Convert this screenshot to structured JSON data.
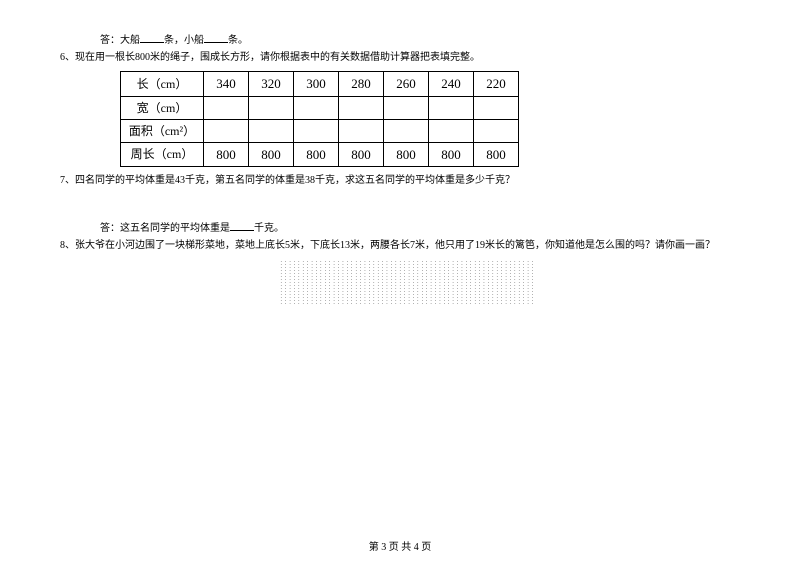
{
  "q5": {
    "answer_prefix": "答：大船",
    "mid": "条，小船",
    "suffix": "条。"
  },
  "q6": {
    "num": "6、",
    "text": "现在用一根长800米的绳子，围成长方形，请你根据表中的有关数据借助计算器把表填完整。",
    "table": {
      "rows": [
        {
          "label": "长（cm）",
          "cells": [
            "340",
            "320",
            "300",
            "280",
            "260",
            "240",
            "220"
          ]
        },
        {
          "label": "宽（cm）",
          "cells": [
            "",
            "",
            "",
            "",
            "",
            "",
            ""
          ]
        },
        {
          "label": "面积（cm²）",
          "cells": [
            "",
            "",
            "",
            "",
            "",
            "",
            ""
          ]
        },
        {
          "label": "周长（cm）",
          "cells": [
            "800",
            "800",
            "800",
            "800",
            "800",
            "800",
            "800"
          ]
        }
      ]
    }
  },
  "q7": {
    "num": "7、",
    "text": "四名同学的平均体重是43千克，第五名同学的体重是38千克，求这五名同学的平均体重是多少千克？",
    "answer_prefix": "答：这五名同学的平均体重是",
    "answer_suffix": "千克。"
  },
  "q8": {
    "num": "8、",
    "text": "张大爷在小河边围了一块梯形菜地，菜地上底长5米，下底长13米，两腰各长7米，他只用了19米长的篱笆，你知道他是怎么围的吗？请你画一画？"
  },
  "footer": "第 3 页 共 4 页",
  "style": {
    "blank_width_short": 24
  }
}
